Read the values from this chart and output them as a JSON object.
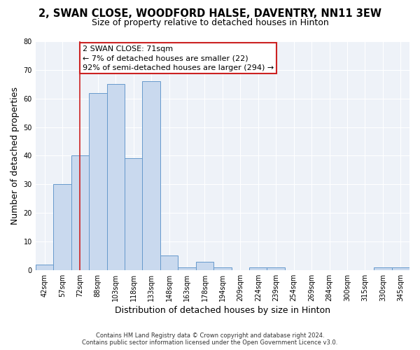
{
  "title": "2, SWAN CLOSE, WOODFORD HALSE, DAVENTRY, NN11 3EW",
  "subtitle": "Size of property relative to detached houses in Hinton",
  "xlabel": "Distribution of detached houses by size in Hinton",
  "ylabel": "Number of detached properties",
  "bin_labels": [
    "42sqm",
    "57sqm",
    "72sqm",
    "88sqm",
    "103sqm",
    "118sqm",
    "133sqm",
    "148sqm",
    "163sqm",
    "178sqm",
    "194sqm",
    "209sqm",
    "224sqm",
    "239sqm",
    "254sqm",
    "269sqm",
    "284sqm",
    "300sqm",
    "315sqm",
    "330sqm",
    "345sqm"
  ],
  "bar_heights": [
    2,
    30,
    40,
    62,
    65,
    39,
    66,
    5,
    1,
    3,
    1,
    0,
    1,
    1,
    0,
    0,
    0,
    0,
    0,
    1,
    1
  ],
  "bar_color": "#c9d9ee",
  "bar_edge_color": "#6699cc",
  "vline_x_index": 2,
  "vline_color": "#cc2222",
  "annotation_title": "2 SWAN CLOSE: 71sqm",
  "annotation_line1": "← 7% of detached houses are smaller (22)",
  "annotation_line2": "92% of semi-detached houses are larger (294) →",
  "annotation_box_edgecolor": "#cc2222",
  "ylim": [
    0,
    80
  ],
  "yticks": [
    0,
    10,
    20,
    30,
    40,
    50,
    60,
    70,
    80
  ],
  "footer1": "Contains HM Land Registry data © Crown copyright and database right 2024.",
  "footer2": "Contains public sector information licensed under the Open Government Licence v3.0.",
  "fig_facecolor": "#ffffff",
  "axes_facecolor": "#eef2f8",
  "grid_color": "#ffffff",
  "title_fontsize": 10.5,
  "subtitle_fontsize": 9,
  "axis_label_fontsize": 9,
  "tick_fontsize": 7,
  "footer_fontsize": 6,
  "annotation_fontsize": 8
}
